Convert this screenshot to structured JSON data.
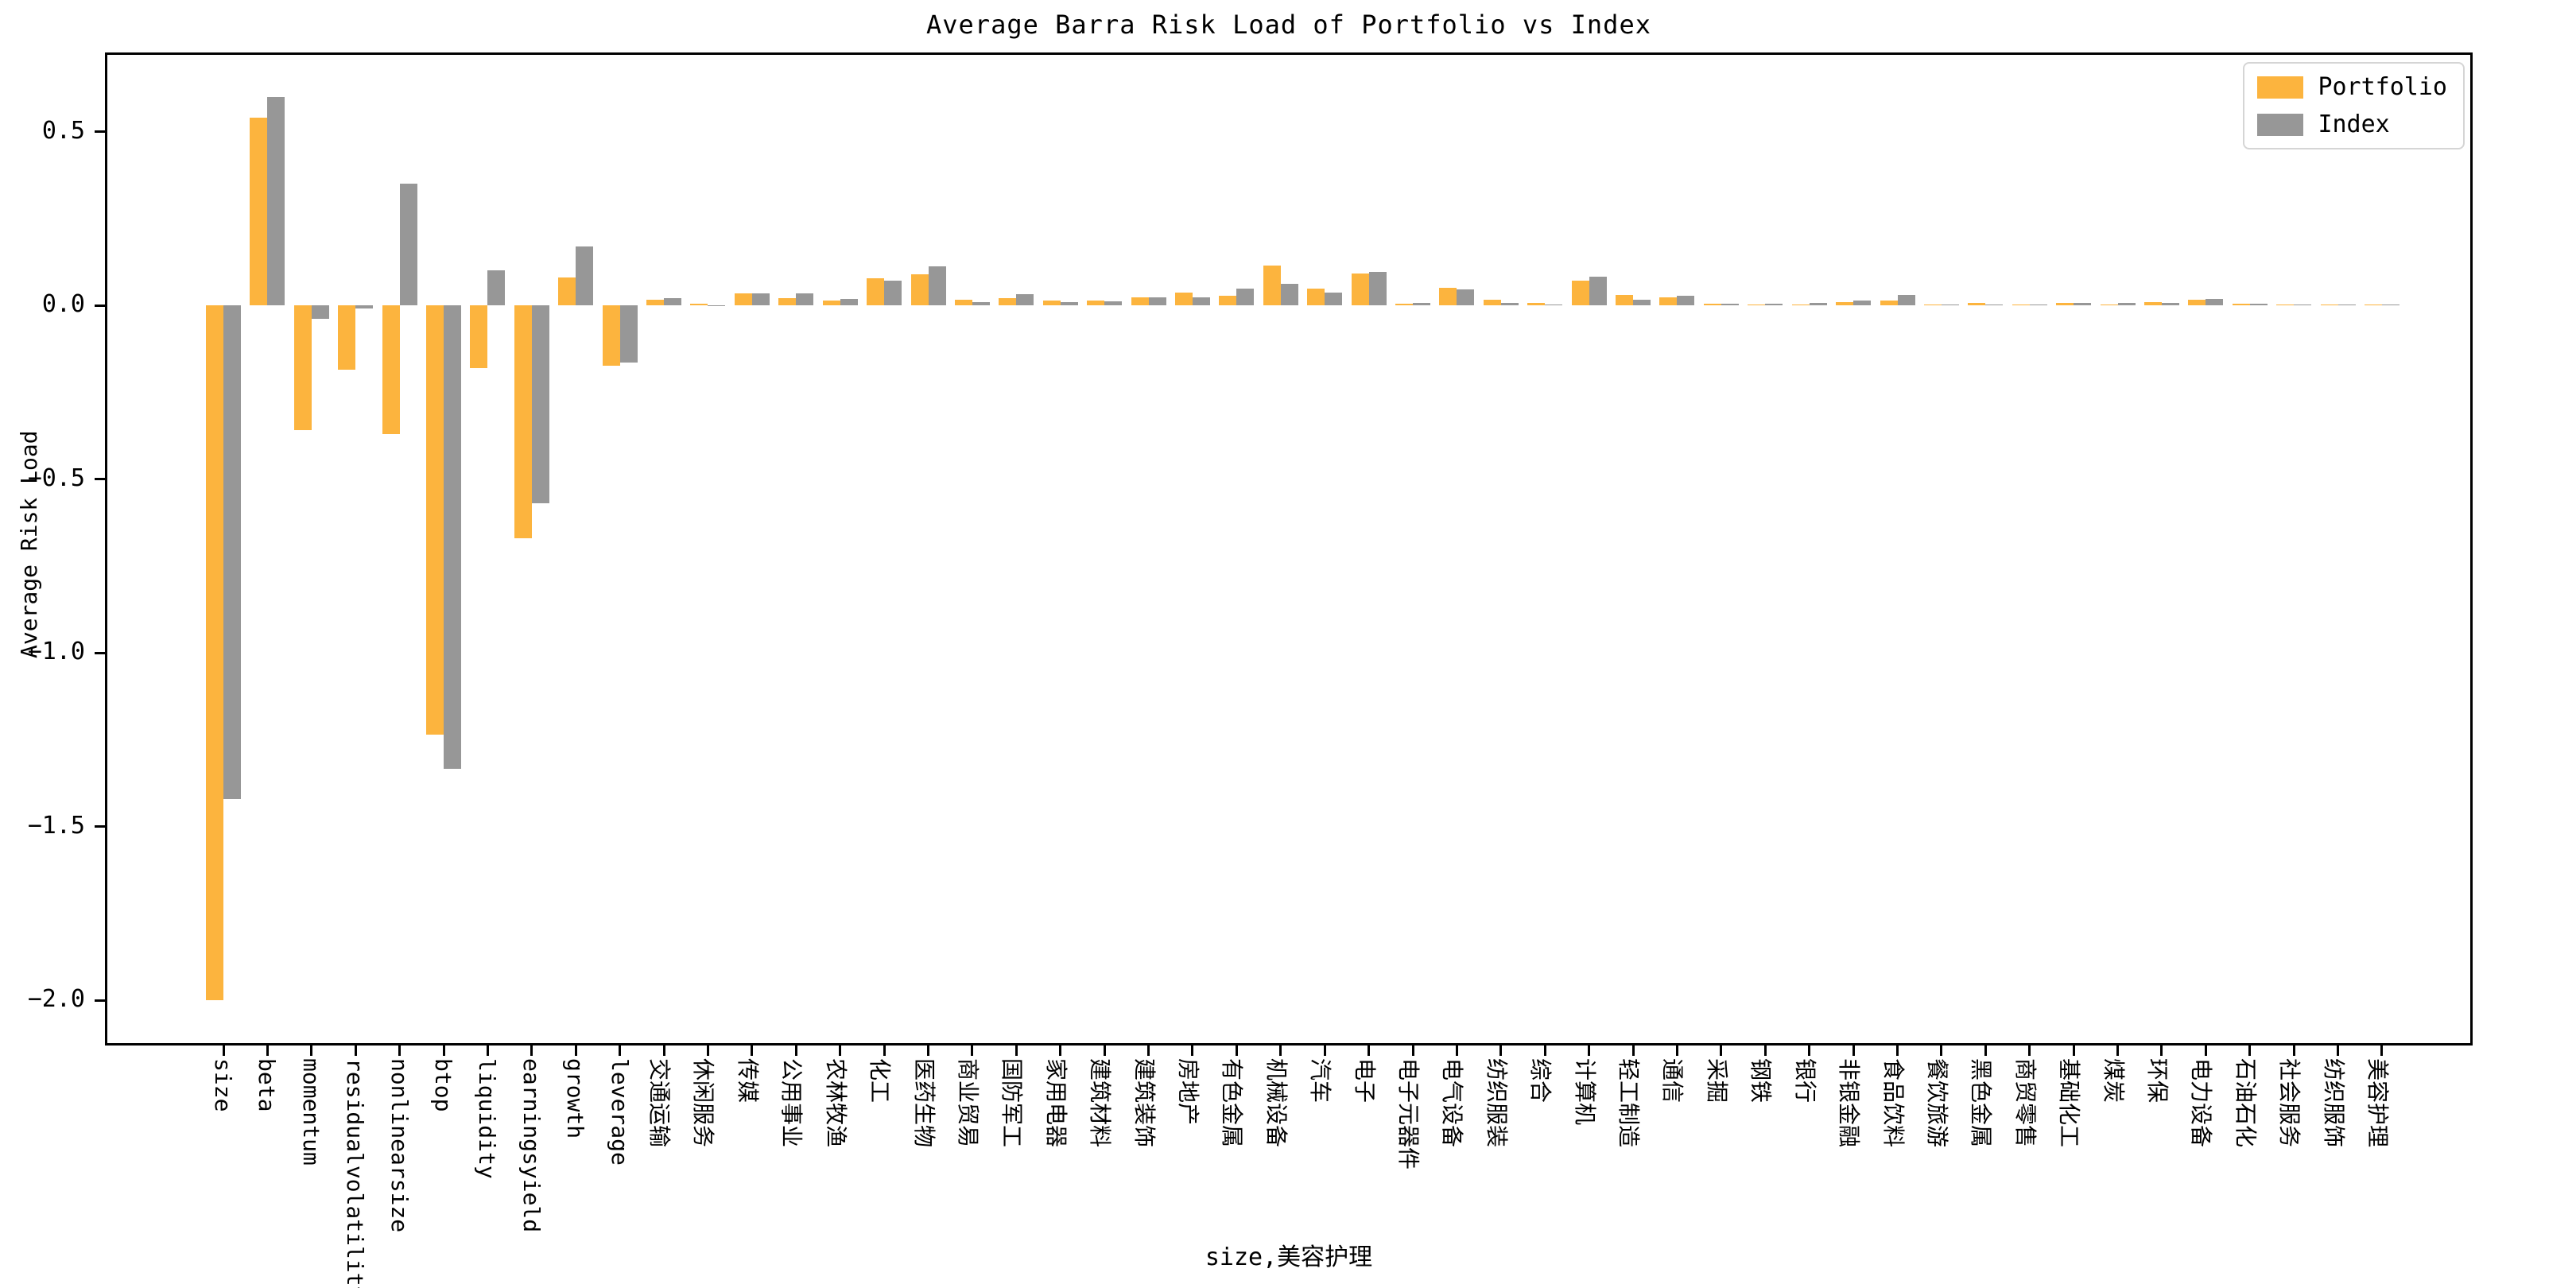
{
  "title": "Average Barra Risk Load of Portfolio vs Index",
  "xlabel": "size,美容护理",
  "ylabel": "Average Risk Load",
  "legend": {
    "position": "upper right",
    "entries": [
      "Portfolio",
      "Index"
    ]
  },
  "colors": {
    "portfolio": "#FCB43E",
    "index": "#979797",
    "spine": "#000000",
    "legend_border": "#d5d5d5",
    "background": "#ffffff"
  },
  "chart_data": {
    "type": "bar",
    "title": "Average Barra Risk Load of Portfolio vs Index",
    "xlabel": "size,美容护理",
    "ylabel": "Average Risk Load",
    "grid": false,
    "legend_position": "upper right",
    "ylim": [
      -2.13,
      0.73
    ],
    "yticks": [
      {
        "value": 0.5,
        "label": "0.5"
      },
      {
        "value": 0.0,
        "label": "0.0"
      },
      {
        "value": -0.5,
        "label": "−0.5"
      },
      {
        "value": -1.0,
        "label": "−1.0"
      },
      {
        "value": -1.5,
        "label": "−1.5"
      },
      {
        "value": -2.0,
        "label": "−2.0"
      }
    ],
    "categories": [
      "size",
      "beta",
      "momentum",
      "residualvolatility",
      "nonlinearsize",
      "btop",
      "liquidity",
      "earningsyield",
      "growth",
      "leverage",
      "交通运输",
      "休闲服务",
      "传媒",
      "公用事业",
      "农林牧渔",
      "化工",
      "医药生物",
      "商业贸易",
      "国防军工",
      "家用电器",
      "建筑材料",
      "建筑装饰",
      "房地产",
      "有色金属",
      "机械设备",
      "汽车",
      "电子",
      "电子元器件",
      "电气设备",
      "纺织服装",
      "综合",
      "计算机",
      "轻工制造",
      "通信",
      "采掘",
      "钢铁",
      "银行",
      "非银金融",
      "食品饮料",
      "餐饮旅游",
      "黑色金属",
      "商贸零售",
      "基础化工",
      "煤炭",
      "环保",
      "电力设备",
      "石油石化",
      "社会服务",
      "纺织服饰",
      "美容护理"
    ],
    "series": [
      {
        "name": "Portfolio",
        "color": "#FCB43E",
        "values": [
          -2.0,
          0.54,
          -0.36,
          -0.185,
          -0.37,
          -1.235,
          -0.18,
          -0.67,
          0.08,
          -0.175,
          0.015,
          0.005,
          0.035,
          0.021,
          0.013,
          0.078,
          0.089,
          0.015,
          0.021,
          0.013,
          0.013,
          0.023,
          0.036,
          0.028,
          0.114,
          0.049,
          0.091,
          0.005,
          0.051,
          0.015,
          0.007,
          0.072,
          0.03,
          0.022,
          0.005,
          0.003,
          0.003,
          0.009,
          0.013,
          0.001,
          0.008,
          0.002,
          0.008,
          0.003,
          0.009,
          0.015,
          0.005,
          0.001,
          0.002,
          0.003
        ]
      },
      {
        "name": "Index",
        "color": "#979797",
        "values": [
          -1.42,
          0.6,
          -0.04,
          -0.01,
          0.35,
          -1.335,
          0.1,
          -0.57,
          0.17,
          -0.165,
          0.021,
          -0.003,
          0.035,
          0.034,
          0.018,
          0.07,
          0.112,
          0.009,
          0.033,
          0.01,
          0.011,
          0.023,
          0.024,
          0.049,
          0.061,
          0.036,
          0.095,
          0.008,
          0.045,
          0.007,
          0.003,
          0.083,
          0.017,
          0.028,
          0.005,
          0.004,
          0.007,
          0.013,
          0.03,
          0.001,
          0.002,
          0.002,
          0.006,
          0.006,
          0.007,
          0.019,
          0.005,
          0.001,
          0.002,
          0.003
        ]
      }
    ]
  }
}
